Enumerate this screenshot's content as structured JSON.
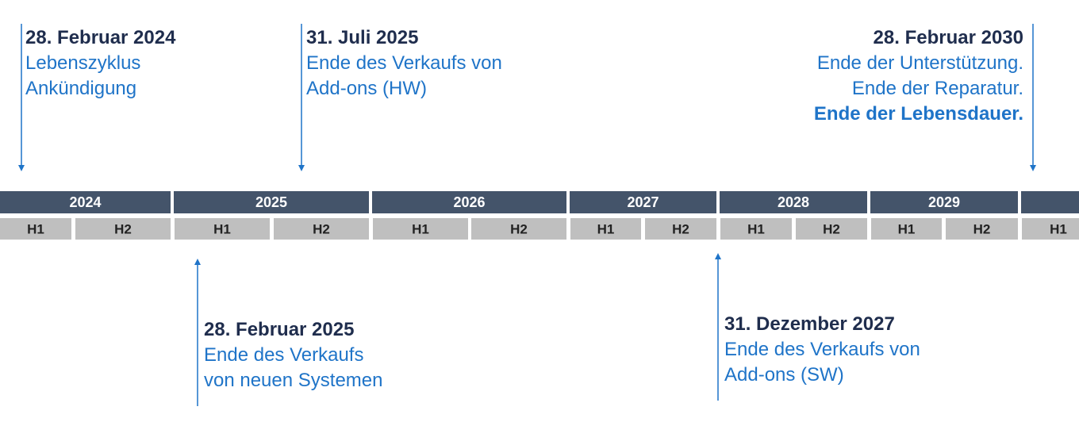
{
  "events": [
    {
      "date": "28. Februar 2024",
      "lines": [
        "Lebenszyklus",
        "Ankündigung"
      ]
    },
    {
      "date": "31. Juli 2025",
      "lines": [
        "Ende des Verkaufs von",
        "Add-ons (HW)"
      ]
    },
    {
      "date": "28. Februar 2030",
      "lines": [
        "Ende der Unterstützung.",
        "Ende der Reparatur."
      ],
      "highlight": "Ende der Lebensdauer."
    },
    {
      "date": "28. Februar 2025",
      "lines": [
        "Ende des Verkaufs",
        "von neuen Systemen"
      ]
    },
    {
      "date": "31. Dezember 2027",
      "lines": [
        "Ende des Verkaufs von",
        "Add-ons (SW)"
      ]
    }
  ],
  "years": [
    "2024",
    "2025",
    "2026",
    "2027",
    "2028",
    "2029"
  ],
  "halves": [
    "H1",
    "H2",
    "H1",
    "H2",
    "H1",
    "H2",
    "H1",
    "H2",
    "H1",
    "H2",
    "H1",
    "H2",
    "H1"
  ]
}
